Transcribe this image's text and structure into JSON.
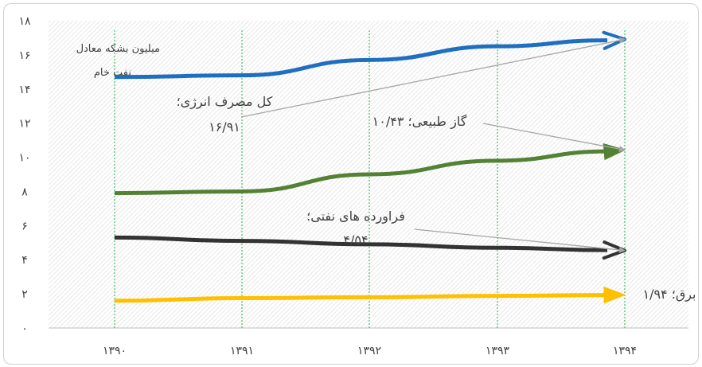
{
  "chart_data": {
    "type": "line",
    "title": "",
    "unit_label": [
      "میلیون بشکه معادل",
      "نفت خام"
    ],
    "x": [
      "۱۳۹۰",
      "۱۳۹۱",
      "۱۳۹۲",
      "۱۳۹۳",
      "۱۳۹۴"
    ],
    "y_ticks": [
      "۰",
      "۲",
      "۴",
      "۶",
      "۸",
      "۱۰",
      "۱۲",
      "۱۴",
      "۱۶",
      "۱۸"
    ],
    "ylim": [
      0,
      18
    ],
    "grid": "hatched background, dotted green vertical gridlines",
    "series": [
      {
        "color": "#1F6FC0",
        "values": [
          14.7,
          14.8,
          15.7,
          16.5,
          16.91
        ]
      },
      {
        "color": "#548235",
        "values": [
          7.9,
          8.0,
          9.0,
          9.8,
          10.43
        ]
      },
      {
        "color": "#333333",
        "values": [
          5.3,
          5.1,
          4.9,
          4.7,
          4.54
        ]
      },
      {
        "color": "#FFC000",
        "values": [
          1.6,
          1.75,
          1.8,
          1.88,
          1.94
        ]
      }
    ],
    "annotations": [
      {
        "lines": [
          "کل مصرف انرژی؛",
          "۱۶/۹۱"
        ],
        "x": "۱۳۹۴",
        "y": 16.91
      },
      {
        "lines": [
          "گاز طبیعی؛ ۱۰/۴۳"
        ],
        "x": "۱۳۹۴",
        "y": 10.43
      },
      {
        "lines": [
          "فراورده های نفتی؛",
          "۴/۵۴"
        ],
        "x": "۱۳۹۴",
        "y": 4.54
      },
      {
        "lines": [
          "برق؛ ۱/۹۴"
        ],
        "x": "۱۳۹۴",
        "y": 1.94
      }
    ]
  }
}
